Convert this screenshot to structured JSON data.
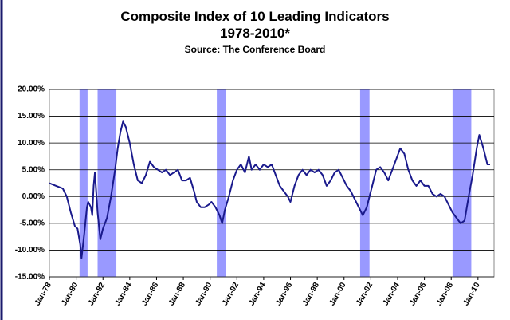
{
  "chart_data": {
    "type": "line",
    "title": "Composite Index of 10 Leading Indicators",
    "subtitle": "1978-2010*",
    "source": "Source: The Conference Board",
    "x": [
      1978.0,
      1978.5,
      1979.0,
      1979.3,
      1979.6,
      1979.9,
      1980.1,
      1980.3,
      1980.4,
      1980.6,
      1980.8,
      1980.9,
      1981.1,
      1981.2,
      1981.3,
      1981.4,
      1981.6,
      1981.8,
      1982.0,
      1982.3,
      1982.6,
      1982.9,
      1983.1,
      1983.3,
      1983.5,
      1983.7,
      1984.0,
      1984.3,
      1984.6,
      1984.9,
      1985.2,
      1985.5,
      1985.8,
      1986.1,
      1986.4,
      1986.7,
      1987.0,
      1987.3,
      1987.6,
      1987.9,
      1988.2,
      1988.5,
      1988.8,
      1989.0,
      1989.3,
      1989.6,
      1989.9,
      1990.1,
      1990.4,
      1990.7,
      1990.9,
      1991.1,
      1991.4,
      1991.7,
      1992.0,
      1992.3,
      1992.6,
      1992.9,
      1993.1,
      1993.4,
      1993.7,
      1994.0,
      1994.3,
      1994.6,
      1994.9,
      1995.2,
      1995.5,
      1995.8,
      1996.0,
      1996.3,
      1996.6,
      1996.9,
      1997.2,
      1997.5,
      1997.8,
      1998.1,
      1998.4,
      1998.7,
      1999.0,
      1999.3,
      1999.6,
      1999.9,
      2000.2,
      2000.5,
      2000.8,
      2001.1,
      2001.4,
      2001.7,
      2001.9,
      2002.1,
      2002.4,
      2002.7,
      2003.0,
      2003.3,
      2003.6,
      2003.9,
      2004.2,
      2004.5,
      2004.8,
      2005.1,
      2005.4,
      2005.7,
      2006.0,
      2006.3,
      2006.6,
      2006.9,
      2007.2,
      2007.5,
      2007.8,
      2008.1,
      2008.4,
      2008.7,
      2009.0,
      2009.3,
      2009.6,
      2009.9,
      2010.1,
      2010.4,
      2010.7,
      2010.9
    ],
    "series": [
      {
        "color": "#1a1a8c",
        "values": [
          2.5,
          2,
          1.5,
          0,
          -3,
          -5.5,
          -6,
          -9,
          -11.5,
          -7,
          -2,
          -1,
          -2,
          -3.5,
          2,
          4.5,
          -3,
          -8,
          -6,
          -4,
          0,
          5,
          9,
          12,
          14,
          13,
          10,
          6,
          3,
          2.5,
          4,
          6.5,
          5.5,
          5,
          4.5,
          5,
          4,
          4.5,
          5,
          3,
          3,
          3.5,
          1,
          -1,
          -2,
          -2,
          -1.5,
          -1,
          -2,
          -3.5,
          -5,
          -2.5,
          0,
          3,
          5,
          6,
          4.5,
          7.5,
          5,
          6,
          5,
          6,
          5.5,
          6,
          4,
          2,
          1,
          0,
          -1,
          2,
          4,
          5,
          4,
          5,
          4.5,
          5,
          4,
          2,
          3,
          4.5,
          5,
          3.5,
          2,
          1,
          -0.5,
          -2,
          -3.5,
          -2,
          0,
          2,
          5,
          5.5,
          4.5,
          3,
          5,
          7,
          9,
          8,
          5,
          3,
          2,
          3,
          2,
          2,
          0.5,
          0,
          0.5,
          0,
          -1.5,
          -3,
          -4,
          -5,
          -4.5,
          0,
          4,
          9,
          11.5,
          9,
          6,
          6
        ]
      }
    ],
    "recessions": [
      [
        1980.25,
        1980.85
      ],
      [
        1981.6,
        1983.0
      ],
      [
        1990.5,
        1991.2
      ],
      [
        2001.2,
        2001.9
      ],
      [
        2008.1,
        2009.5
      ]
    ],
    "recession_color": "#9999ff",
    "xlim": [
      1978,
      2011.2
    ],
    "xticks": [
      {
        "value": 1978,
        "label": "Jan-78"
      },
      {
        "value": 1980,
        "label": "Jan-80"
      },
      {
        "value": 1982,
        "label": "Jan-82"
      },
      {
        "value": 1984,
        "label": "Jan-84"
      },
      {
        "value": 1986,
        "label": "Jan-86"
      },
      {
        "value": 1988,
        "label": "Jan-88"
      },
      {
        "value": 1990,
        "label": "Jan-90"
      },
      {
        "value": 1992,
        "label": "Jan-92"
      },
      {
        "value": 1994,
        "label": "Jan-94"
      },
      {
        "value": 1996,
        "label": "Jan-96"
      },
      {
        "value": 1998,
        "label": "Jan-98"
      },
      {
        "value": 2000,
        "label": "Jan-00"
      },
      {
        "value": 2002,
        "label": "Jan-02"
      },
      {
        "value": 2004,
        "label": "Jan-04"
      },
      {
        "value": 2006,
        "label": "Jan-06"
      },
      {
        "value": 2008,
        "label": "Jan-08"
      },
      {
        "value": 2010,
        "label": "Jan-10"
      }
    ],
    "ylim": [
      -15,
      20
    ],
    "yticks": [
      {
        "value": 20,
        "label": "20.00%"
      },
      {
        "value": 15,
        "label": "15.00%"
      },
      {
        "value": 10,
        "label": "10.00%"
      },
      {
        "value": 5,
        "label": "5.00%"
      },
      {
        "value": 0,
        "label": "0.00%"
      },
      {
        "value": -5,
        "label": "-5.00%"
      },
      {
        "value": -10,
        "label": "-10.00%"
      },
      {
        "value": -15,
        "label": "-15.00%"
      }
    ],
    "grid": true
  }
}
